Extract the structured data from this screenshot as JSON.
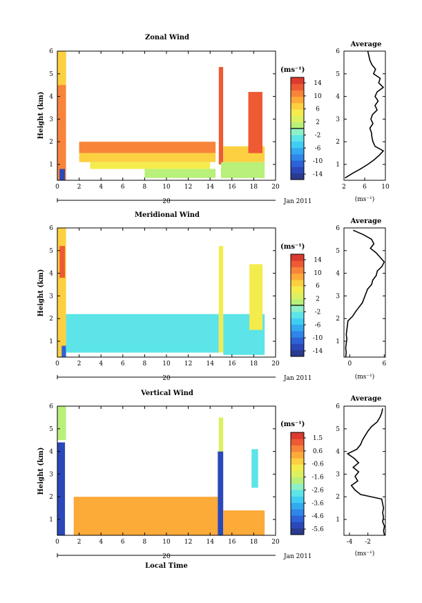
{
  "figure": {
    "xlabel_bottom": "Local Time"
  },
  "colorbar_unit": "(ms⁻¹)",
  "avg_unit": "(ms⁻¹)",
  "colormap": [
    "#2a3a8c",
    "#2a48b8",
    "#2d62d8",
    "#2f86e8",
    "#33aaf0",
    "#40cdf4",
    "#5ce4e8",
    "#8ef0c8",
    "#b8f07a",
    "#dcf060",
    "#f4ec4c",
    "#fcd040",
    "#fcaa38",
    "#f8843a",
    "#ee5a34",
    "#dc3a2e"
  ],
  "contour_color": "#000000",
  "panels": [
    {
      "id": "zonal",
      "title": "Zonal Wind",
      "ylabel": "Height (km)",
      "date_label": "Jan 2011",
      "day_label": "20",
      "x_ticks": [
        "0",
        "2",
        "4",
        "6",
        "8",
        "10",
        "12",
        "14",
        "16",
        "18",
        "20"
      ],
      "y_ticks": [
        "1",
        "2",
        "3",
        "4",
        "5",
        "6"
      ],
      "colorbar_ticks": [
        "14",
        "10",
        "6",
        "2",
        "-2",
        "-6",
        "-10",
        "-14"
      ],
      "colorbar_min": -16,
      "colorbar_max": 16,
      "colorbar_zero_line": true,
      "avg_title": "Average",
      "avg_x_ticks": [
        "2",
        "6",
        "10"
      ],
      "avg_y_ticks": [
        "1",
        "2",
        "3",
        "4",
        "5",
        "6"
      ],
      "avg_xlim": [
        2,
        10
      ],
      "avg_x_tick_values": [
        2,
        6,
        10
      ],
      "average_profile": {
        "height": [
          0.4,
          0.6,
          0.8,
          1.0,
          1.2,
          1.4,
          1.6,
          1.8,
          2.0,
          2.2,
          2.4,
          2.6,
          2.8,
          3.0,
          3.2,
          3.4,
          3.6,
          3.8,
          4.0,
          4.2,
          4.4,
          4.6,
          4.8,
          5.0,
          5.2,
          5.4,
          5.6,
          5.8,
          6.0
        ],
        "value": [
          2.2,
          3.6,
          5.2,
          6.6,
          7.8,
          8.8,
          9.6,
          8.0,
          7.6,
          7.4,
          7.3,
          7.0,
          7.6,
          7.2,
          7.5,
          8.4,
          8.0,
          8.6,
          8.0,
          8.4,
          9.6,
          8.7,
          9.0,
          7.7,
          8.1,
          7.4,
          7.0,
          6.8,
          6.6
        ]
      },
      "chart_data": {
        "type": "heatmap",
        "title": "Zonal Wind",
        "xlabel": "",
        "ylabel": "Height (km)",
        "xlim": [
          0,
          20
        ],
        "ylim": [
          0.3,
          6
        ],
        "segments": [
          {
            "x": [
              0.0,
              0.8
            ],
            "y": [
              0.3,
              6.0
            ],
            "value": 10
          },
          {
            "x": [
              0.2,
              0.7
            ],
            "y": [
              0.3,
              0.8
            ],
            "value": -14
          },
          {
            "x": [
              0.0,
              0.8
            ],
            "y": [
              4.5,
              6.0
            ],
            "value": 6
          },
          {
            "x": [
              2.0,
              14.5
            ],
            "y": [
              1.5,
              2.0
            ],
            "value": 10
          },
          {
            "x": [
              2.0,
              14.5
            ],
            "y": [
              1.1,
              1.5
            ],
            "value": 6
          },
          {
            "x": [
              3.0,
              14.0
            ],
            "y": [
              0.8,
              1.1
            ],
            "value": 4
          },
          {
            "x": [
              8.0,
              14.5
            ],
            "y": [
              0.4,
              0.8
            ],
            "value": 1
          },
          {
            "x": [
              14.8,
              15.2
            ],
            "y": [
              1.0,
              5.3
            ],
            "value": 12
          },
          {
            "x": [
              15.2,
              19.0
            ],
            "y": [
              1.1,
              1.8
            ],
            "value": 6
          },
          {
            "x": [
              15.0,
              19.0
            ],
            "y": [
              0.4,
              1.1
            ],
            "value": 1
          },
          {
            "x": [
              17.5,
              18.8
            ],
            "y": [
              1.5,
              4.2
            ],
            "value": 12
          }
        ]
      }
    },
    {
      "id": "meridional",
      "title": "Meridional Wind",
      "ylabel": "Height (km)",
      "date_label": "Jan 2011",
      "day_label": "20",
      "x_ticks": [
        "0",
        "2",
        "4",
        "6",
        "8",
        "10",
        "12",
        "14",
        "16",
        "18",
        "20"
      ],
      "y_ticks": [
        "1",
        "2",
        "3",
        "4",
        "5",
        "6"
      ],
      "colorbar_ticks": [
        "14",
        "10",
        "6",
        "2",
        "-2",
        "-6",
        "-10",
        "-14"
      ],
      "colorbar_min": -16,
      "colorbar_max": 16,
      "colorbar_zero_line": true,
      "avg_title": "Average",
      "avg_x_ticks": [
        "0",
        "6"
      ],
      "avg_y_ticks": [
        "1",
        "2",
        "3",
        "4",
        "5",
        "6"
      ],
      "avg_xlim": [
        -1,
        6.2
      ],
      "avg_x_tick_values": [
        0,
        6
      ],
      "average_profile": {
        "height": [
          0.3,
          0.5,
          0.7,
          0.9,
          1.1,
          1.3,
          1.5,
          1.7,
          1.9,
          2.1,
          2.3,
          2.5,
          2.7,
          2.9,
          3.1,
          3.3,
          3.5,
          3.7,
          3.9,
          4.1,
          4.3,
          4.5,
          4.7,
          4.9,
          5.1,
          5.3,
          5.5,
          5.7,
          5.9
        ],
        "value": [
          -0.7,
          -0.6,
          -0.7,
          -0.6,
          -0.5,
          -0.6,
          -0.5,
          -0.4,
          -0.3,
          0.5,
          1.0,
          1.6,
          2.2,
          2.5,
          2.8,
          3.1,
          3.8,
          4.0,
          4.6,
          4.8,
          5.6,
          6.0,
          5.3,
          4.6,
          3.6,
          4.2,
          3.8,
          2.4,
          0.6
        ]
      },
      "chart_data": {
        "type": "heatmap",
        "title": "Meridional Wind",
        "xlabel": "",
        "ylabel": "Height (km)",
        "xlim": [
          0,
          20
        ],
        "ylim": [
          0.3,
          6
        ],
        "segments": [
          {
            "x": [
              0.0,
              0.8
            ],
            "y": [
              0.3,
              6.0
            ],
            "value": 6
          },
          {
            "x": [
              0.2,
              0.7
            ],
            "y": [
              3.8,
              5.2
            ],
            "value": 12
          },
          {
            "x": [
              0.4,
              0.8
            ],
            "y": [
              0.3,
              0.8
            ],
            "value": -12
          },
          {
            "x": [
              0.8,
              14.8
            ],
            "y": [
              0.5,
              2.2
            ],
            "value": -3
          },
          {
            "x": [
              14.8,
              15.2
            ],
            "y": [
              0.5,
              5.2
            ],
            "value": 4
          },
          {
            "x": [
              15.2,
              19.0
            ],
            "y": [
              0.4,
              2.2
            ],
            "value": -3
          },
          {
            "x": [
              17.6,
              18.8
            ],
            "y": [
              1.5,
              4.4
            ],
            "value": 5
          }
        ]
      }
    },
    {
      "id": "vertical",
      "title": "Vertical Wind",
      "ylabel": "Height (km)",
      "date_label": "Jan 2011",
      "day_label": "20",
      "x_ticks": [
        "0",
        "2",
        "4",
        "6",
        "8",
        "10",
        "12",
        "14",
        "16",
        "18",
        "20"
      ],
      "y_ticks": [
        "1",
        "2",
        "3",
        "4",
        "5",
        "6"
      ],
      "colorbar_ticks": [
        "1.5",
        "0.6",
        "-0.6",
        "-1.6",
        "-2.6",
        "-3.6",
        "-4.6",
        "-5.6"
      ],
      "colorbar_min": -6.2,
      "colorbar_max": 2.2,
      "colorbar_zero_line": false,
      "avg_title": "Average",
      "avg_x_ticks": [
        "-4",
        "-2"
      ],
      "avg_y_ticks": [
        "1",
        "2",
        "3",
        "4",
        "5",
        "6"
      ],
      "avg_xlim": [
        -4.6,
        -0.1
      ],
      "avg_x_tick_values": [
        -4,
        -2
      ],
      "average_profile": {
        "height": [
          0.3,
          0.5,
          0.7,
          0.9,
          1.1,
          1.3,
          1.5,
          1.7,
          1.9,
          2.1,
          2.3,
          2.5,
          2.7,
          2.9,
          3.1,
          3.3,
          3.5,
          3.7,
          3.9,
          4.1,
          4.3,
          4.5,
          4.7,
          4.9,
          5.1,
          5.3,
          5.5,
          5.7,
          5.9
        ],
        "value": [
          -0.2,
          -0.3,
          -0.2,
          -0.4,
          -0.3,
          -0.4,
          -0.3,
          -0.4,
          -0.5,
          -2.8,
          -3.4,
          -3.8,
          -3.1,
          -3.4,
          -3.0,
          -3.6,
          -3.0,
          -3.5,
          -4.2,
          -3.2,
          -2.8,
          -2.6,
          -2.3,
          -2.0,
          -1.6,
          -1.0,
          -0.7,
          -0.5,
          -0.4
        ]
      },
      "chart_data": {
        "type": "heatmap",
        "title": "Vertical Wind",
        "xlabel": "Local Time",
        "ylabel": "Height (km)",
        "xlim": [
          0,
          20
        ],
        "ylim": [
          0.3,
          6
        ],
        "segments": [
          {
            "x": [
              0.0,
              0.8
            ],
            "y": [
              4.5,
              6.0
            ],
            "value": -1.5
          },
          {
            "x": [
              0.0,
              0.7
            ],
            "y": [
              0.3,
              4.4
            ],
            "value": -5.6
          },
          {
            "x": [
              1.5,
              14.7
            ],
            "y": [
              0.3,
              2.0
            ],
            "value": 0.4
          },
          {
            "x": [
              14.7,
              15.2
            ],
            "y": [
              0.3,
              4.0
            ],
            "value": -5.6
          },
          {
            "x": [
              14.8,
              15.2
            ],
            "y": [
              4.0,
              5.5
            ],
            "value": -1.2
          },
          {
            "x": [
              15.2,
              19.0
            ],
            "y": [
              0.3,
              1.4
            ],
            "value": 0.6
          },
          {
            "x": [
              17.8,
              18.4
            ],
            "y": [
              2.4,
              4.1
            ],
            "value": -2.8
          }
        ]
      }
    }
  ]
}
